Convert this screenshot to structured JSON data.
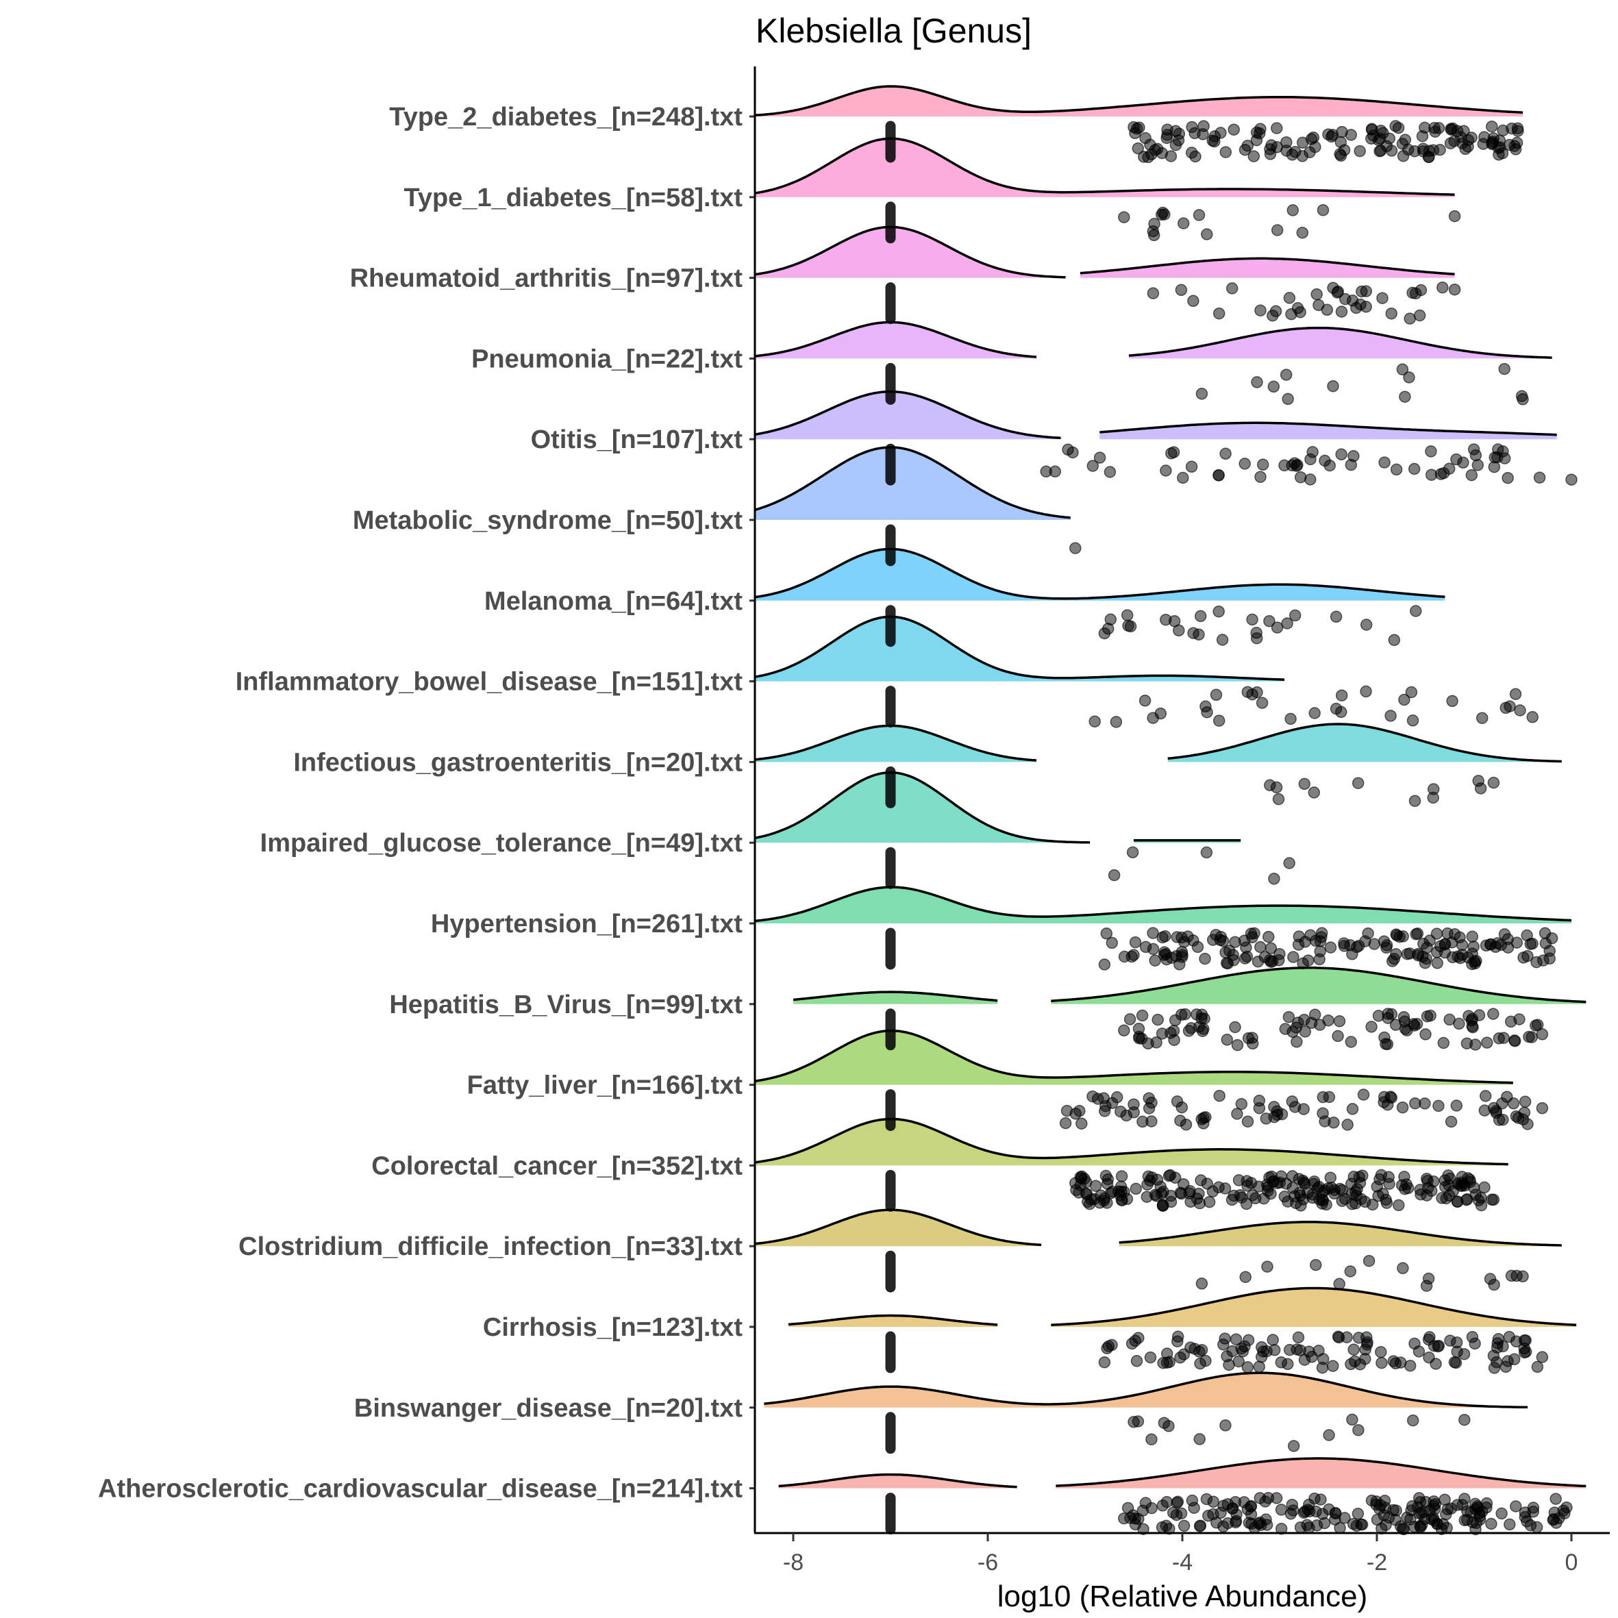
{
  "chart_data": {
    "type": "ridgeline",
    "title": "Klebsiella [Genus]",
    "xlabel": "log10 (Relative Abundance)",
    "ylabel": "",
    "xlim": [
      -8.4,
      0.4
    ],
    "xticks": [
      -8,
      -6,
      -4,
      -2,
      0
    ],
    "xtick_labels": [
      "-8",
      "-6",
      "-4",
      "-2",
      "0"
    ],
    "zero_value": -7,
    "grid": false,
    "legend": "none",
    "groups": [
      {
        "label": "Type_2_diabetes_[n=248].txt",
        "color": "#FDB0C8",
        "segments": [
          {
            "range": [
              -8.4,
              -0.5
            ],
            "components": [
              {
                "mu": -7,
                "sd": 0.55,
                "h": 0.37
              },
              {
                "mu": -3,
                "sd": 1.4,
                "h": 0.24
              }
            ]
          }
        ],
        "nonzero": {
          "range": [
            -4.5,
            -0.55
          ],
          "count": 130
        }
      },
      {
        "label": "Type_1_diabetes_[n=58].txt",
        "color": "#FCADDB",
        "segments": [
          {
            "range": [
              -8.4,
              -1.2
            ],
            "components": [
              {
                "mu": -7,
                "sd": 0.6,
                "h": 0.72
              },
              {
                "mu": -3.5,
                "sd": 1.5,
                "h": 0.1
              }
            ]
          }
        ],
        "nonzero": {
          "range": [
            -4.6,
            -1.2
          ],
          "count": 15
        }
      },
      {
        "label": "Rheumatoid_arthritis_[n=97].txt",
        "color": "#F5AEEB",
        "segments": [
          {
            "range": [
              -8.4,
              -5.2
            ],
            "components": [
              {
                "mu": -7,
                "sd": 0.6,
                "h": 0.63
              }
            ]
          },
          {
            "range": [
              -5.05,
              -1.2
            ],
            "components": [
              {
                "mu": -3.2,
                "sd": 1.1,
                "h": 0.24
              }
            ]
          }
        ],
        "nonzero": {
          "range": [
            -4.3,
            -1.2
          ],
          "count": 35
        }
      },
      {
        "label": "Pneumonia_[n=22].txt",
        "color": "#E6B5FA",
        "segments": [
          {
            "range": [
              -8.4,
              -5.5
            ],
            "components": [
              {
                "mu": -7,
                "sd": 0.6,
                "h": 0.45
              }
            ]
          },
          {
            "range": [
              -4.55,
              -0.2
            ],
            "components": [
              {
                "mu": -2.6,
                "sd": 0.9,
                "h": 0.38
              }
            ]
          }
        ],
        "nonzero": {
          "range": [
            -3.8,
            -0.5
          ],
          "count": 12
        }
      },
      {
        "label": "Otitis_[n=107].txt",
        "color": "#CCBDFB",
        "segments": [
          {
            "range": [
              -8.4,
              -5.25
            ],
            "components": [
              {
                "mu": -7,
                "sd": 0.65,
                "h": 0.59
              }
            ]
          },
          {
            "range": [
              -4.85,
              -0.15
            ],
            "components": [
              {
                "mu": -3.3,
                "sd": 1.2,
                "h": 0.2
              },
              {
                "mu": -0.8,
                "sd": 1.0,
                "h": 0.06
              }
            ]
          }
        ],
        "nonzero": {
          "range": [
            -5.4,
            0
          ],
          "count": 55
        }
      },
      {
        "label": "Metabolic_syndrome_[n=50].txt",
        "color": "#A9C8FC",
        "segments": [
          {
            "range": [
              -8.4,
              -5.15
            ],
            "components": [
              {
                "mu": -7,
                "sd": 0.7,
                "h": 0.9
              }
            ]
          }
        ],
        "nonzero": {
          "range": [
            -5.1,
            -5.1
          ],
          "count": 1
        }
      },
      {
        "label": "Melanoma_[n=64].txt",
        "color": "#7FD3FA",
        "segments": [
          {
            "range": [
              -8.4,
              -1.3
            ],
            "components": [
              {
                "mu": -7,
                "sd": 0.6,
                "h": 0.64
              },
              {
                "mu": -3.0,
                "sd": 1.0,
                "h": 0.2
              }
            ]
          }
        ],
        "nonzero": {
          "range": [
            -4.8,
            -1.6
          ],
          "count": 25
        }
      },
      {
        "label": "Inflammatory_bowel_disease_[n=151].txt",
        "color": "#80D8EE",
        "segments": [
          {
            "range": [
              -8.4,
              -2.95
            ],
            "components": [
              {
                "mu": -7,
                "sd": 0.6,
                "h": 0.8
              },
              {
                "mu": -4.2,
                "sd": 0.8,
                "h": 0.07
              }
            ]
          }
        ],
        "nonzero": {
          "range": [
            -4.9,
            -0.4
          ],
          "count": 30
        }
      },
      {
        "label": "Infectious_gastroenteritis_[n=20].txt",
        "color": "#7FDCDC",
        "segments": [
          {
            "range": [
              -8.4,
              -5.5
            ],
            "components": [
              {
                "mu": -7,
                "sd": 0.6,
                "h": 0.45
              }
            ]
          },
          {
            "range": [
              -4.15,
              -0.1
            ],
            "components": [
              {
                "mu": -2.4,
                "sd": 0.8,
                "h": 0.47
              }
            ]
          }
        ],
        "nonzero": {
          "range": [
            -3.1,
            -0.8
          ],
          "count": 12
        }
      },
      {
        "label": "Impaired_glucose_tolerance_[n=49].txt",
        "color": "#7FDDC8",
        "segments": [
          {
            "range": [
              -8.4,
              -4.95
            ],
            "components": [
              {
                "mu": -7,
                "sd": 0.6,
                "h": 0.87
              }
            ]
          },
          {
            "range": [
              -4.5,
              -3.4
            ],
            "components": [
              {
                "mu": -3.95,
                "sd": 2,
                "h": 0.03
              }
            ]
          }
        ],
        "nonzero": {
          "range": [
            -4.7,
            -2.9
          ],
          "count": 5
        }
      },
      {
        "label": "Hypertension_[n=261].txt",
        "color": "#7FDDB0",
        "segments": [
          {
            "range": [
              -8.4,
              0
            ],
            "components": [
              {
                "mu": -7,
                "sd": 0.6,
                "h": 0.44
              },
              {
                "mu": -3,
                "sd": 1.6,
                "h": 0.22
              }
            ]
          }
        ],
        "nonzero": {
          "range": [
            -4.8,
            -0.2
          ],
          "count": 150
        }
      },
      {
        "label": "Hepatitis_B_Virus_[n=99].txt",
        "color": "#8FDC95",
        "segments": [
          {
            "range": [
              -8,
              -5.9
            ],
            "components": [
              {
                "mu": -7,
                "sd": 0.7,
                "h": 0.15
              }
            ]
          },
          {
            "range": [
              -5.35,
              0.15
            ],
            "components": [
              {
                "mu": -2.7,
                "sd": 1.2,
                "h": 0.45
              }
            ]
          }
        ],
        "nonzero": {
          "range": [
            -4.6,
            -0.3
          ],
          "count": 90
        }
      },
      {
        "label": "Fatty_liver_[n=166].txt",
        "color": "#ADD97F",
        "segments": [
          {
            "range": [
              -8.4,
              -0.6
            ],
            "components": [
              {
                "mu": -7,
                "sd": 0.6,
                "h": 0.66
              },
              {
                "mu": -3.5,
                "sd": 1.5,
                "h": 0.16
              }
            ]
          }
        ],
        "nonzero": {
          "range": [
            -5.2,
            -0.3
          ],
          "count": 80
        }
      },
      {
        "label": "Colorectal_cancer_[n=352].txt",
        "color": "#C8D57F",
        "segments": [
          {
            "range": [
              -8.4,
              -0.65
            ],
            "components": [
              {
                "mu": -7,
                "sd": 0.6,
                "h": 0.57
              },
              {
                "mu": -3.6,
                "sd": 1.3,
                "h": 0.2
              }
            ]
          }
        ],
        "nonzero": {
          "range": [
            -5.1,
            -0.8
          ],
          "count": 200
        }
      },
      {
        "label": "Clostridium_difficile_infection_[n=33].txt",
        "color": "#DACD80",
        "segments": [
          {
            "range": [
              -8.4,
              -5.45
            ],
            "components": [
              {
                "mu": -7,
                "sd": 0.6,
                "h": 0.45
              }
            ]
          },
          {
            "range": [
              -4.65,
              -0.1
            ],
            "components": [
              {
                "mu": -2.7,
                "sd": 1.0,
                "h": 0.3
              }
            ]
          }
        ],
        "nonzero": {
          "range": [
            -3.8,
            -0.5
          ],
          "count": 15
        }
      },
      {
        "label": "Cirrhosis_[n=123].txt",
        "color": "#E8CB87",
        "segments": [
          {
            "range": [
              -8.05,
              -5.9
            ],
            "components": [
              {
                "mu": -7,
                "sd": 0.6,
                "h": 0.14
              }
            ]
          },
          {
            "range": [
              -5.35,
              0.05
            ],
            "components": [
              {
                "mu": -2.65,
                "sd": 1.1,
                "h": 0.48
              }
            ]
          }
        ],
        "nonzero": {
          "range": [
            -4.8,
            -0.3
          ],
          "count": 110
        }
      },
      {
        "label": "Binswanger_disease_[n=20].txt",
        "color": "#F2C194",
        "segments": [
          {
            "range": [
              -8.3,
              -0.45
            ],
            "components": [
              {
                "mu": -7,
                "sd": 0.7,
                "h": 0.26
              },
              {
                "mu": -3.2,
                "sd": 0.9,
                "h": 0.43
              }
            ]
          }
        ],
        "nonzero": {
          "range": [
            -4.5,
            -1.1
          ],
          "count": 13
        }
      },
      {
        "label": "Atherosclerotic_cardiovascular_disease_[n=214].txt",
        "color": "#F9B4B0",
        "segments": [
          {
            "range": [
              -8.15,
              -5.7
            ],
            "components": [
              {
                "mu": -7,
                "sd": 0.6,
                "h": 0.17
              }
            ]
          },
          {
            "range": [
              -5.3,
              0.15
            ],
            "components": [
              {
                "mu": -2.6,
                "sd": 1.2,
                "h": 0.37
              }
            ]
          }
        ],
        "nonzero": {
          "range": [
            -4.6,
            -0.05
          ],
          "count": 180
        }
      }
    ]
  }
}
